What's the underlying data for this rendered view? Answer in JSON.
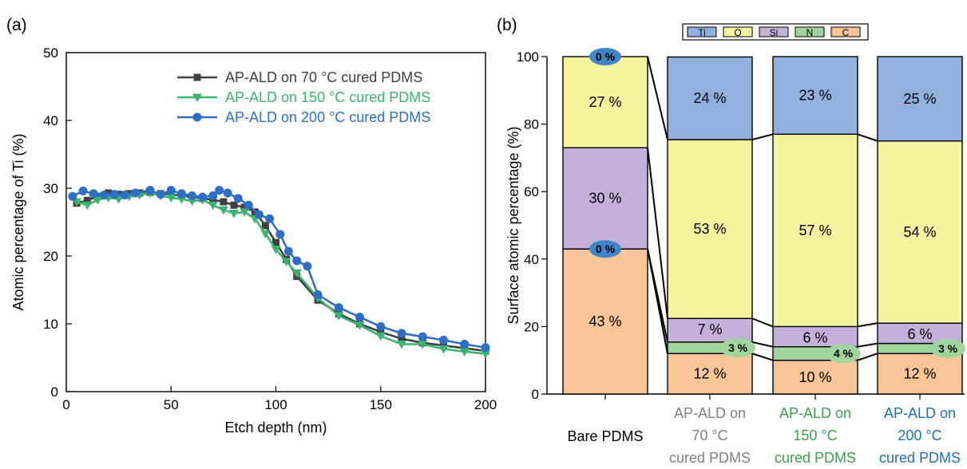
{
  "panel_labels": {
    "a": "(a)",
    "b": "(b)"
  },
  "chart_data": [
    {
      "type": "line",
      "panel": "(a)",
      "xlabel": "Etch depth (nm)",
      "ylabel": "Atomic percentage of Ti (%)",
      "xlim": [
        0,
        200
      ],
      "ylim": [
        0,
        50
      ],
      "xticks": [
        0,
        50,
        100,
        150,
        200
      ],
      "yticks": [
        0,
        10,
        20,
        30,
        40,
        50
      ],
      "grid": false,
      "legend_position": "top-right",
      "series": [
        {
          "name": "AP-ALD on 70 °C cured PDMS",
          "color": "#404040",
          "marker": "square",
          "x": [
            5,
            10,
            15,
            20,
            25,
            30,
            35,
            40,
            45,
            50,
            55,
            60,
            65,
            70,
            75,
            80,
            85,
            90,
            95,
            100,
            105,
            110,
            120,
            130,
            140,
            150,
            160,
            170,
            180,
            190,
            200
          ],
          "y": [
            27.8,
            28.2,
            28.8,
            29.3,
            29.1,
            29.2,
            29.3,
            29.4,
            29.2,
            29.1,
            28.9,
            28.7,
            28.5,
            28.3,
            28.0,
            27.5,
            27.2,
            26.5,
            24.5,
            22.0,
            19.5,
            17.0,
            13.5,
            11.5,
            10.0,
            8.8,
            7.8,
            7.2,
            6.8,
            6.4,
            6.0
          ]
        },
        {
          "name": "AP-ALD on 150 °C cured PDMS",
          "color": "#3cb371",
          "marker": "triangle-down",
          "x": [
            5,
            10,
            15,
            20,
            25,
            30,
            35,
            40,
            45,
            50,
            55,
            60,
            65,
            70,
            75,
            80,
            85,
            90,
            95,
            100,
            105,
            110,
            120,
            130,
            140,
            150,
            160,
            170,
            180,
            190,
            200
          ],
          "y": [
            28.0,
            27.5,
            28.3,
            28.6,
            28.4,
            28.8,
            29.0,
            29.3,
            28.9,
            28.6,
            28.4,
            28.1,
            28.3,
            27.5,
            26.8,
            26.3,
            26.5,
            25.5,
            23.3,
            21.0,
            19.2,
            17.5,
            13.8,
            11.2,
            9.8,
            8.2,
            7.0,
            7.0,
            6.3,
            5.9,
            5.6
          ]
        },
        {
          "name": "AP-ALD on 200 °C cured PDMS",
          "color": "#2e6fc4",
          "marker": "circle",
          "x": [
            3,
            8,
            13,
            18,
            23,
            28,
            33,
            40,
            45,
            50,
            55,
            60,
            65,
            70,
            73,
            77,
            82,
            87,
            92,
            97,
            102,
            106,
            110,
            115,
            120,
            130,
            140,
            150,
            160,
            170,
            180,
            190,
            200
          ],
          "y": [
            28.8,
            29.6,
            29.2,
            29.0,
            29.1,
            29.0,
            29.3,
            29.7,
            29.1,
            29.7,
            29.2,
            28.9,
            28.7,
            28.9,
            29.7,
            29.3,
            28.5,
            27.5,
            26.1,
            25.5,
            23.2,
            20.7,
            19.3,
            18.5,
            14.3,
            12.4,
            11.0,
            9.6,
            8.6,
            8.1,
            7.6,
            7.0,
            6.5
          ]
        }
      ]
    },
    {
      "type": "bar",
      "stacked": true,
      "panel": "(b)",
      "xlabel": "",
      "ylabel": "Surface atomic percentage (%)",
      "ylim": [
        0,
        100
      ],
      "yticks": [
        0,
        20,
        40,
        60,
        80,
        100
      ],
      "legend_position": "top",
      "categories": [
        "Bare PDMS",
        "AP-ALD on 70 °C cured PDMS",
        "AP-ALD on 150 °C cured PDMS",
        "AP-ALD on 200 °C cured PDMS"
      ],
      "category_label_lines": [
        [
          "Bare PDMS"
        ],
        [
          "AP-ALD on",
          "70 °C",
          "cured PDMS"
        ],
        [
          "AP-ALD on",
          "150 °C",
          "cured PDMS"
        ],
        [
          "AP-ALD on",
          "200 °C",
          "cured PDMS"
        ]
      ],
      "category_label_colors": [
        "#000000",
        "#808080",
        "#3aa04a",
        "#1f6fb5"
      ],
      "stack_order": [
        "C",
        "N",
        "Si",
        "O",
        "Ti"
      ],
      "legend_order": [
        "Ti",
        "O",
        "Si",
        "N",
        "C"
      ],
      "series": [
        {
          "name": "Ti",
          "color": "#92b0dd",
          "values": [
            0,
            24.5,
            23,
            25
          ],
          "labels": [
            "0 %",
            "24 %",
            "23 %",
            "25 %"
          ]
        },
        {
          "name": "O",
          "color": "#f5f3a0",
          "values": [
            27,
            53,
            57,
            54
          ],
          "labels": [
            "27 %",
            "53 %",
            "57 %",
            "54 %"
          ]
        },
        {
          "name": "Si",
          "color": "#c4b1da",
          "values": [
            30,
            7,
            6,
            6
          ],
          "labels": [
            "30 %",
            "7 %",
            "6 %",
            "6 %"
          ]
        },
        {
          "name": "N",
          "color": "#9fd59c",
          "values": [
            0,
            3.4,
            4,
            3
          ],
          "labels": [
            "0 %",
            "3 %",
            "4 %",
            "3 %"
          ]
        },
        {
          "name": "C",
          "color": "#f7c597",
          "values": [
            43,
            12,
            10,
            12
          ],
          "labels": [
            "43 %",
            "12 %",
            "10 %",
            "12 %"
          ]
        }
      ]
    }
  ]
}
